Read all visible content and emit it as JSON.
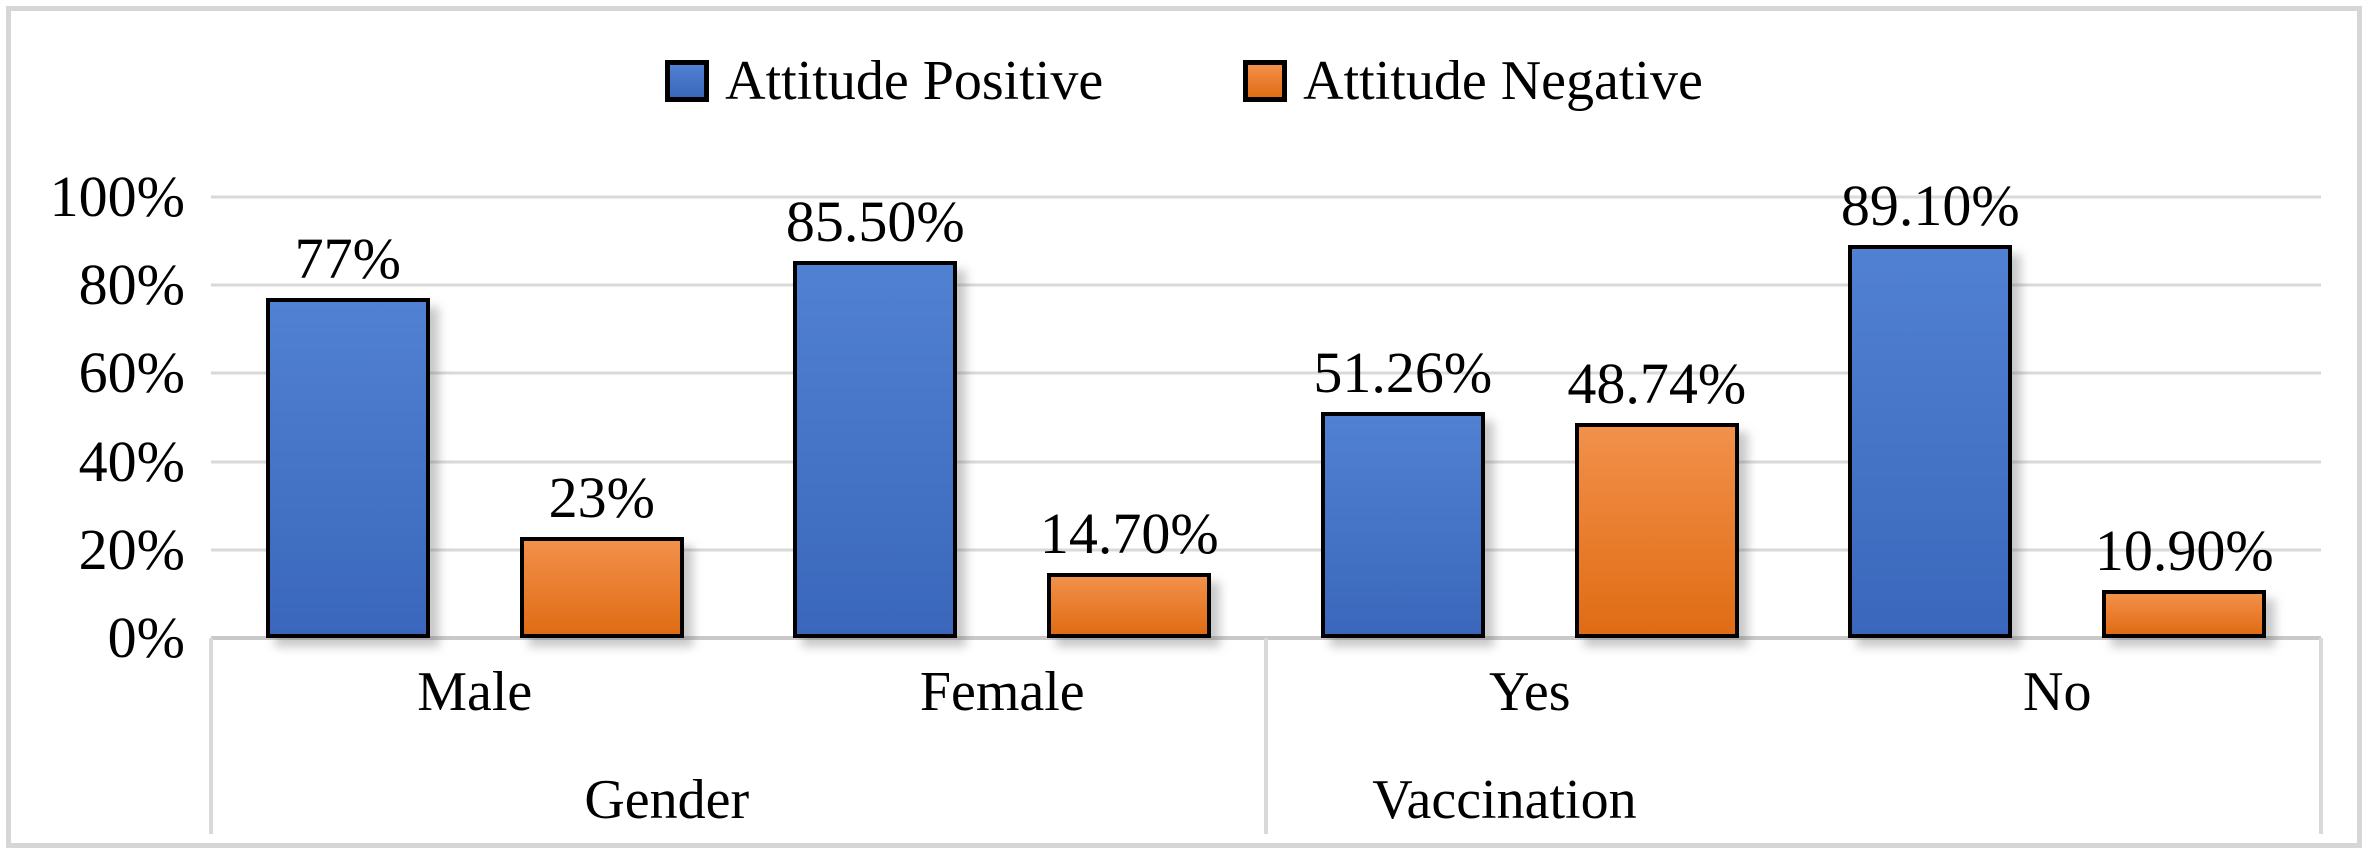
{
  "chart_data": {
    "type": "bar",
    "title": "",
    "categories": [
      "Male",
      "Female",
      "Yes",
      "No"
    ],
    "groups": [
      {
        "label": "Gender",
        "categories": [
          "Male",
          "Female"
        ]
      },
      {
        "label": "Vaccination",
        "categories": [
          "Yes",
          "No"
        ]
      }
    ],
    "series": [
      {
        "name": "Attitude Positive",
        "color": "#4472C4",
        "color_top": "#5181d2",
        "color_bottom": "#3a67bb",
        "values": [
          77,
          85.5,
          51.26,
          89.1
        ],
        "labels": [
          "77%",
          "85.50%",
          "51.26%",
          "89.10%"
        ]
      },
      {
        "name": "Attitude Negative",
        "color": "#ED7D31",
        "color_top": "#f2904a",
        "color_bottom": "#e06c14",
        "values": [
          23,
          14.7,
          48.74,
          10.9
        ],
        "labels": [
          "23%",
          "14.70%",
          "48.74%",
          "10.90%"
        ]
      }
    ],
    "y_axis": {
      "min": 0,
      "max": 100,
      "ticks": [
        "0%",
        "20%",
        "40%",
        "60%",
        "80%",
        "100%"
      ]
    },
    "grid": true,
    "legend_position": "top",
    "colors": {
      "gridline": "#d9d9d9",
      "baseline": "#c9c9c9",
      "axis_divider": "#d9d9d9",
      "frame_border": "#d6d6d6",
      "bar_outline": "#000000"
    }
  }
}
